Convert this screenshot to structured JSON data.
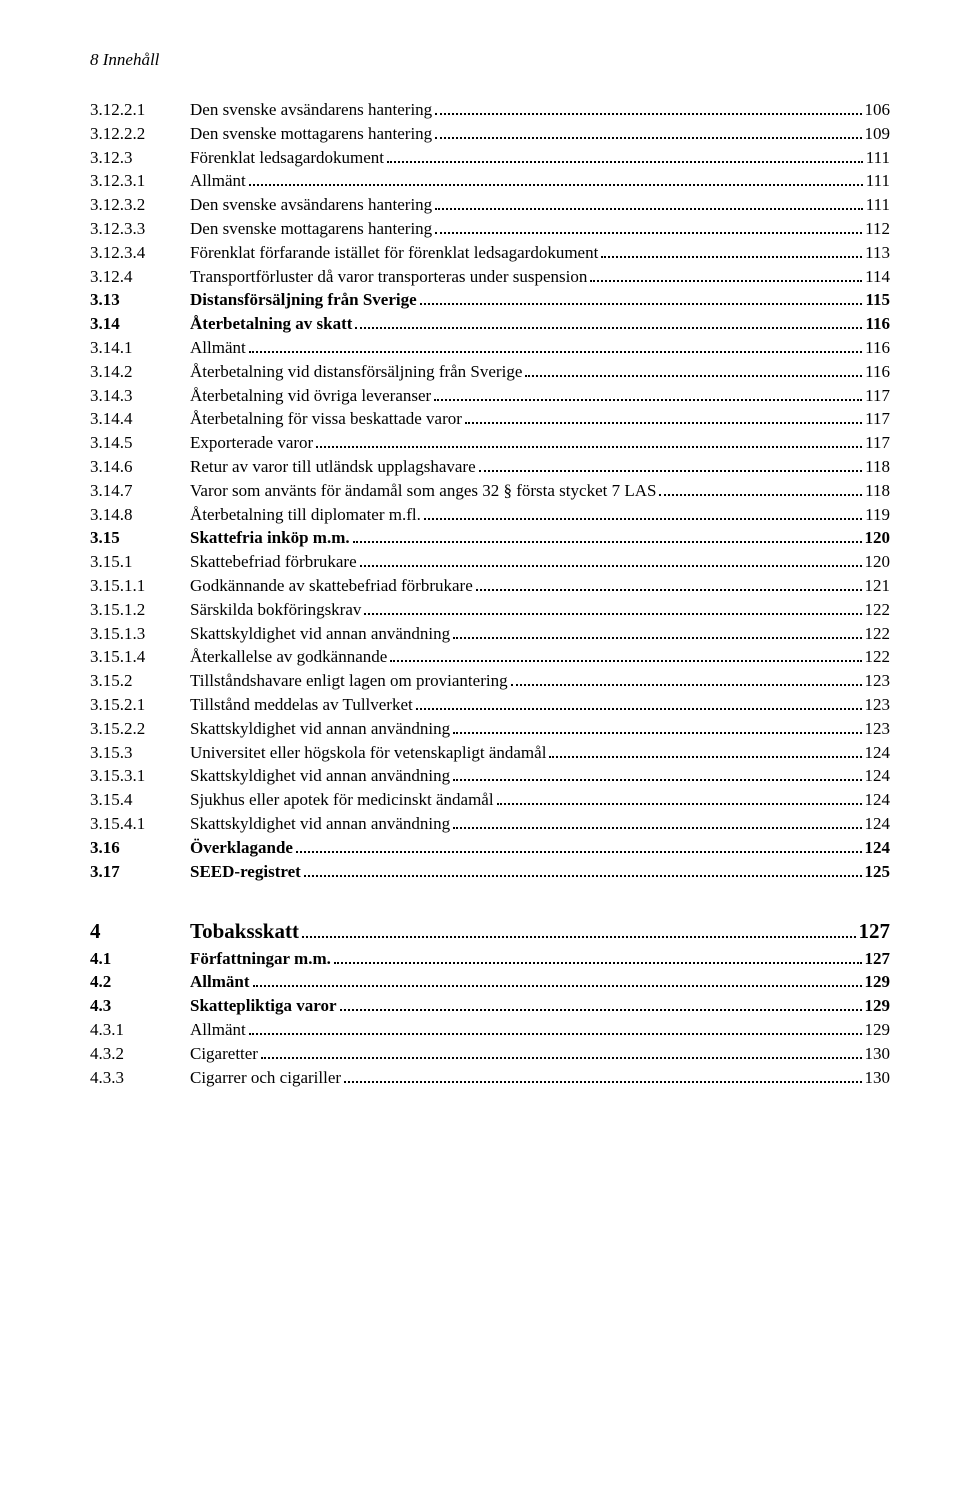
{
  "page_header": "8    Innehåll",
  "toc": [
    {
      "num": "3.12.2.1",
      "title": "Den svenske avsändarens hantering",
      "page": "106",
      "bold": false,
      "numWidth": 100
    },
    {
      "num": "3.12.2.2",
      "title": "Den svenske mottagarens hantering",
      "page": "109",
      "bold": false,
      "numWidth": 100
    },
    {
      "num": "3.12.3",
      "title": "Förenklat ledsagardokument",
      "page": "111",
      "bold": false,
      "numWidth": 100
    },
    {
      "num": "3.12.3.1",
      "title": "Allmänt",
      "page": "111",
      "bold": false,
      "numWidth": 100
    },
    {
      "num": "3.12.3.2",
      "title": "Den svenske avsändarens hantering",
      "page": "111",
      "bold": false,
      "numWidth": 100
    },
    {
      "num": "3.12.3.3",
      "title": "Den svenske mottagarens hantering",
      "page": "112",
      "bold": false,
      "numWidth": 100
    },
    {
      "num": "3.12.3.4",
      "title": "Förenklat förfarande istället för förenklat ledsagardokument",
      "page": "113",
      "bold": false,
      "numWidth": 100
    },
    {
      "num": "3.12.4",
      "title": "Transportförluster då varor transporteras under suspension",
      "page": "114",
      "bold": false,
      "numWidth": 100
    },
    {
      "num": "3.13",
      "title": "Distansförsäljning från Sverige",
      "page": "115",
      "bold": true,
      "numWidth": 100
    },
    {
      "num": "3.14",
      "title": "Återbetalning av skatt",
      "page": "116",
      "bold": true,
      "numWidth": 100
    },
    {
      "num": "3.14.1",
      "title": "Allmänt",
      "page": "116",
      "bold": false,
      "numWidth": 100
    },
    {
      "num": "3.14.2",
      "title": "Återbetalning vid distansförsäljning från Sverige",
      "page": "116",
      "bold": false,
      "numWidth": 100
    },
    {
      "num": "3.14.3",
      "title": "Återbetalning vid övriga leveranser",
      "page": "117",
      "bold": false,
      "numWidth": 100
    },
    {
      "num": "3.14.4",
      "title": "Återbetalning för vissa beskattade varor",
      "page": "117",
      "bold": false,
      "numWidth": 100
    },
    {
      "num": "3.14.5",
      "title": "Exporterade varor",
      "page": "117",
      "bold": false,
      "numWidth": 100
    },
    {
      "num": "3.14.6",
      "title": "Retur av varor till utländsk upplagshavare",
      "page": "118",
      "bold": false,
      "numWidth": 100
    },
    {
      "num": "3.14.7",
      "title": "Varor som använts för ändamål som anges 32 § första stycket 7 LAS",
      "page": "118",
      "bold": false,
      "numWidth": 100
    },
    {
      "num": "3.14.8",
      "title": "Återbetalning till diplomater m.fl.",
      "page": "119",
      "bold": false,
      "numWidth": 100
    },
    {
      "num": "3.15",
      "title": "Skattefria inköp m.m. ",
      "page": "120",
      "bold": true,
      "numWidth": 100
    },
    {
      "num": "3.15.1",
      "title": "Skattebefriad förbrukare",
      "page": "120",
      "bold": false,
      "numWidth": 100
    },
    {
      "num": "3.15.1.1",
      "title": "Godkännande av skattebefriad förbrukare",
      "page": "121",
      "bold": false,
      "numWidth": 100
    },
    {
      "num": "3.15.1.2",
      "title": "Särskilda bokföringskrav",
      "page": "122",
      "bold": false,
      "numWidth": 100
    },
    {
      "num": "3.15.1.3",
      "title": "Skattskyldighet vid annan användning",
      "page": "122",
      "bold": false,
      "numWidth": 100
    },
    {
      "num": "3.15.1.4",
      "title": "Återkallelse av godkännande",
      "page": "122",
      "bold": false,
      "numWidth": 100
    },
    {
      "num": "3.15.2",
      "title": "Tillståndshavare enligt lagen om proviantering",
      "page": "123",
      "bold": false,
      "numWidth": 100
    },
    {
      "num": "3.15.2.1",
      "title": "Tillstånd meddelas av Tullverket",
      "page": "123",
      "bold": false,
      "numWidth": 100
    },
    {
      "num": "3.15.2.2",
      "title": "Skattskyldighet vid annan användning",
      "page": "123",
      "bold": false,
      "numWidth": 100
    },
    {
      "num": "3.15.3",
      "title": "Universitet eller högskola för vetenskapligt ändamål",
      "page": "124",
      "bold": false,
      "numWidth": 100
    },
    {
      "num": "3.15.3.1",
      "title": "Skattskyldighet vid annan användning",
      "page": "124",
      "bold": false,
      "numWidth": 100
    },
    {
      "num": "3.15.4",
      "title": "Sjukhus eller apotek för medicinskt ändamål",
      "page": "124",
      "bold": false,
      "numWidth": 100
    },
    {
      "num": "3.15.4.1",
      "title": "Skattskyldighet vid annan användning",
      "page": "124",
      "bold": false,
      "numWidth": 100
    },
    {
      "num": "3.16",
      "title": "Överklagande",
      "page": "124",
      "bold": true,
      "numWidth": 100
    },
    {
      "num": "3.17",
      "title": "SEED-registret",
      "page": "125",
      "bold": true,
      "numWidth": 100
    }
  ],
  "chapter": {
    "num": "4",
    "title": "Tobaksskatt",
    "page": "127",
    "numWidth": 100
  },
  "toc2": [
    {
      "num": "4.1",
      "title": "Författningar m.m.",
      "page": "127",
      "bold": true,
      "numWidth": 100
    },
    {
      "num": "4.2",
      "title": "Allmänt",
      "page": "129",
      "bold": true,
      "numWidth": 100
    },
    {
      "num": "4.3",
      "title": "Skattepliktiga varor",
      "page": "129",
      "bold": true,
      "numWidth": 100
    },
    {
      "num": "4.3.1",
      "title": "Allmänt",
      "page": "129",
      "bold": false,
      "numWidth": 100
    },
    {
      "num": "4.3.2",
      "title": "Cigaretter",
      "page": "130",
      "bold": false,
      "numWidth": 100
    },
    {
      "num": "4.3.3",
      "title": "Cigarrer och cigariller",
      "page": "130",
      "bold": false,
      "numWidth": 100
    }
  ]
}
